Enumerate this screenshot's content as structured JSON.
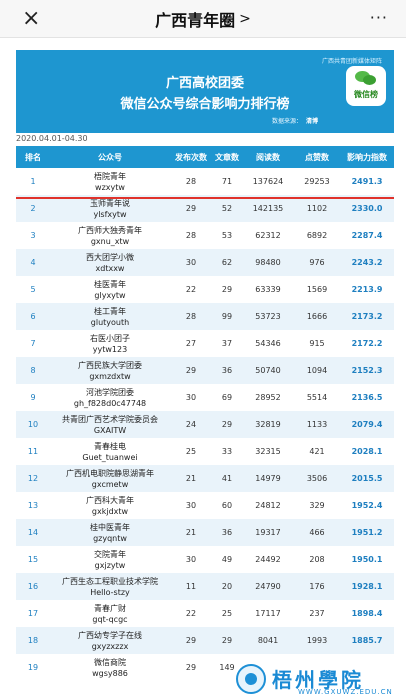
{
  "nav": {
    "close_icon": "×",
    "title": "广西青年圈",
    "more_icon": "···"
  },
  "banner": {
    "top_source": "广西共青团新媒体矩阵",
    "title1": "广西高校团委",
    "title2": "微信公众号综合影响力排行榜",
    "source_label": "数据来源：",
    "source_mark": "清博",
    "badge_label": "微信榜",
    "color": "#1e96d0"
  },
  "period": "2020.04.01-04.30",
  "table": {
    "headers": [
      "排名",
      "公众号",
      "发布次数",
      "文章数",
      "阅读数",
      "点赞数",
      "影响力指数"
    ],
    "rows": [
      {
        "rank": "1",
        "name": "梧院青年",
        "account": "wzxytw",
        "pub": "28",
        "art": "71",
        "read": "137624",
        "like": "29253",
        "score": "2491.3"
      },
      {
        "rank": "2",
        "name": "玉师青年说",
        "account": "ylsfxytw",
        "pub": "29",
        "art": "52",
        "read": "142135",
        "like": "1102",
        "score": "2330.0"
      },
      {
        "rank": "3",
        "name": "广西师大独秀青年",
        "account": "gxnu_xtw",
        "pub": "28",
        "art": "53",
        "read": "62312",
        "like": "6892",
        "score": "2287.4"
      },
      {
        "rank": "4",
        "name": "西大团学小微",
        "account": "xdtxxw",
        "pub": "30",
        "art": "62",
        "read": "98480",
        "like": "976",
        "score": "2243.2"
      },
      {
        "rank": "5",
        "name": "桂医青年",
        "account": "glyxytw",
        "pub": "22",
        "art": "29",
        "read": "63339",
        "like": "1569",
        "score": "2213.9"
      },
      {
        "rank": "6",
        "name": "桂工青年",
        "account": "glutyouth",
        "pub": "28",
        "art": "99",
        "read": "53723",
        "like": "1666",
        "score": "2173.2"
      },
      {
        "rank": "7",
        "name": "右医小团子",
        "account": "yytw123",
        "pub": "27",
        "art": "37",
        "read": "54346",
        "like": "915",
        "score": "2172.2"
      },
      {
        "rank": "8",
        "name": "广西民族大学团委",
        "account": "gxmzdxtw",
        "pub": "29",
        "art": "36",
        "read": "50740",
        "like": "1094",
        "score": "2152.3"
      },
      {
        "rank": "9",
        "name": "河池学院团委",
        "account": "gh_f828d0c47748",
        "pub": "30",
        "art": "69",
        "read": "28952",
        "like": "5514",
        "score": "2136.5"
      },
      {
        "rank": "10",
        "name": "共青团广西艺术学院委员会",
        "account": "GXAITW",
        "pub": "24",
        "art": "29",
        "read": "32819",
        "like": "1133",
        "score": "2079.4"
      },
      {
        "rank": "11",
        "name": "青春桂电",
        "account": "Guet_tuanwei",
        "pub": "25",
        "art": "33",
        "read": "32315",
        "like": "421",
        "score": "2028.1"
      },
      {
        "rank": "12",
        "name": "广西机电职院静思湖青年",
        "account": "gxcmetw",
        "pub": "21",
        "art": "41",
        "read": "14979",
        "like": "3506",
        "score": "2015.5"
      },
      {
        "rank": "13",
        "name": "广西科大青年",
        "account": "gxkjdxtw",
        "pub": "30",
        "art": "60",
        "read": "24812",
        "like": "329",
        "score": "1952.4"
      },
      {
        "rank": "14",
        "name": "桂中医青年",
        "account": "gzyqntw",
        "pub": "21",
        "art": "36",
        "read": "19317",
        "like": "466",
        "score": "1951.2"
      },
      {
        "rank": "15",
        "name": "交院青年",
        "account": "gxjzytw",
        "pub": "30",
        "art": "49",
        "read": "24492",
        "like": "208",
        "score": "1950.1"
      },
      {
        "rank": "16",
        "name": "广西生态工程职业技术学院",
        "account": "Hello-stzy",
        "pub": "11",
        "art": "20",
        "read": "24790",
        "like": "176",
        "score": "1928.1"
      },
      {
        "rank": "17",
        "name": "青春广财",
        "account": "gqt-qcgc",
        "pub": "22",
        "art": "25",
        "read": "17117",
        "like": "237",
        "score": "1898.4"
      },
      {
        "rank": "18",
        "name": "广西幼专学子在线",
        "account": "gxyzxzzx",
        "pub": "29",
        "art": "29",
        "read": "8041",
        "like": "1993",
        "score": "1885.7"
      },
      {
        "rank": "19",
        "name": "微信商院",
        "account": "wgsy886",
        "pub": "29",
        "art": "149",
        "read": "",
        "like": "",
        "score": ""
      }
    ]
  },
  "watermark": {
    "name": "梧州學院",
    "url": "WWW.GXUWZ.EDU.CN"
  }
}
